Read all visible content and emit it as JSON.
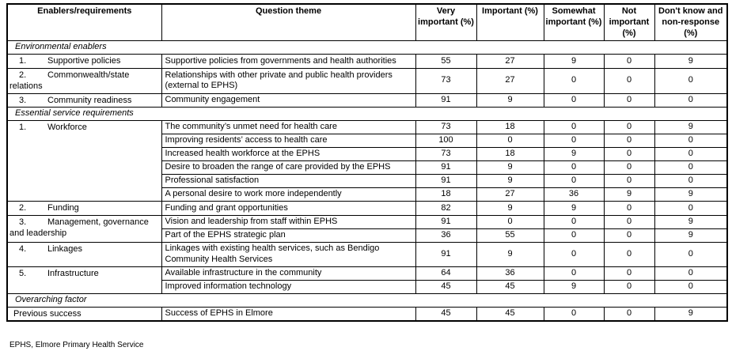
{
  "table": {
    "headers": [
      {
        "label": "Enablers/requirements"
      },
      {
        "label": "Question theme"
      },
      {
        "label": "Very important (%)"
      },
      {
        "label": "Important (%)"
      },
      {
        "label": "Somewhat important (%)"
      },
      {
        "label": "Not important (%)"
      },
      {
        "label": "Don't know and non-response (%)"
      }
    ],
    "sections": [
      {
        "title": "Environmental enablers",
        "rows": [
          {
            "num": "1.",
            "enabler": "Supportive policies",
            "themes": [
              {
                "theme": "Supportive policies from governments and health authorities",
                "values": [
                  "55",
                  "27",
                  "9",
                  "0",
                  "9"
                ]
              }
            ]
          },
          {
            "num": "2.",
            "enabler": "Commonwealth/state relations",
            "themes": [
              {
                "theme": "Relationships with other private and public health providers (external to EPHS)",
                "values": [
                  "73",
                  "27",
                  "0",
                  "0",
                  "0"
                ]
              }
            ]
          },
          {
            "num": "3.",
            "enabler": "Community readiness",
            "themes": [
              {
                "theme": "Community engagement",
                "values": [
                  "91",
                  "9",
                  "0",
                  "0",
                  "0"
                ]
              }
            ]
          }
        ]
      },
      {
        "title": "Essential service requirements",
        "rows": [
          {
            "num": "1.",
            "enabler": "Workforce",
            "themes": [
              {
                "theme": "The community’s unmet need for health care",
                "values": [
                  "73",
                  "18",
                  "0",
                  "0",
                  "9"
                ]
              },
              {
                "theme": "Improving residents’ access to health care",
                "values": [
                  "100",
                  "0",
                  "0",
                  "0",
                  "0"
                ]
              },
              {
                "theme": "Increased health workforce at the EPHS",
                "values": [
                  "73",
                  "18",
                  "9",
                  "0",
                  "0"
                ]
              },
              {
                "theme": "Desire to broaden the range of care provided by the EPHS",
                "values": [
                  "91",
                  "9",
                  "0",
                  "0",
                  "0"
                ]
              },
              {
                "theme": "Professional satisfaction",
                "values": [
                  "91",
                  "9",
                  "0",
                  "0",
                  "0"
                ]
              },
              {
                "theme": "A personal desire to work more independently",
                "values": [
                  "18",
                  "27",
                  "36",
                  "9",
                  "9"
                ]
              }
            ]
          },
          {
            "num": "2.",
            "enabler": "Funding",
            "themes": [
              {
                "theme": "Funding and grant opportunities",
                "values": [
                  "82",
                  "9",
                  "9",
                  "0",
                  "0"
                ]
              }
            ]
          },
          {
            "num": "3.",
            "enabler": "Management, governance and leadership",
            "themes": [
              {
                "theme": "Vision and leadership from staff within EPHS",
                "values": [
                  "91",
                  "0",
                  "0",
                  "0",
                  "9"
                ]
              },
              {
                "theme": "Part of the EPHS strategic plan",
                "values": [
                  "36",
                  "55",
                  "0",
                  "0",
                  "9"
                ]
              }
            ]
          },
          {
            "num": "4.",
            "enabler": "Linkages",
            "themes": [
              {
                "theme": "Linkages with existing health services, such as Bendigo Community Health Services",
                "values": [
                  "91",
                  "9",
                  "0",
                  "0",
                  "0"
                ]
              }
            ]
          },
          {
            "num": "5.",
            "enabler": "Infrastructure",
            "themes": [
              {
                "theme": "Available infrastructure in the community",
                "values": [
                  "64",
                  "36",
                  "0",
                  "0",
                  "0"
                ]
              },
              {
                "theme": "Improved information technology",
                "values": [
                  "45",
                  "45",
                  "9",
                  "0",
                  "0"
                ]
              }
            ]
          }
        ]
      },
      {
        "title": "Overarching factor",
        "rows": [
          {
            "num": "",
            "enabler": "Previous success",
            "themes": [
              {
                "theme": "Success of EPHS in Elmore",
                "values": [
                  "45",
                  "45",
                  "0",
                  "0",
                  "9"
                ]
              }
            ]
          }
        ]
      }
    ]
  },
  "footnote": "EPHS, Elmore Primary Health Service"
}
